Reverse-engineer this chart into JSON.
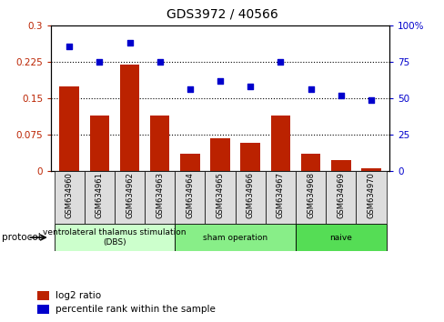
{
  "title": "GDS3972 / 40566",
  "samples": [
    "GSM634960",
    "GSM634961",
    "GSM634962",
    "GSM634963",
    "GSM634964",
    "GSM634965",
    "GSM634966",
    "GSM634967",
    "GSM634968",
    "GSM634969",
    "GSM634970"
  ],
  "log2_ratio": [
    0.175,
    0.115,
    0.22,
    0.115,
    0.035,
    0.068,
    0.058,
    0.115,
    0.035,
    0.022,
    0.005
  ],
  "percentile_rank": [
    86,
    75,
    88,
    75,
    56,
    62,
    58,
    75,
    56,
    52,
    49
  ],
  "bar_color": "#bb2200",
  "dot_color": "#0000cc",
  "ylim_left": [
    0,
    0.3
  ],
  "ylim_right": [
    0,
    100
  ],
  "yticks_left": [
    0,
    0.075,
    0.15,
    0.225,
    0.3
  ],
  "yticks_right": [
    0,
    25,
    50,
    75,
    100
  ],
  "ytick_labels_left": [
    "0",
    "0.075",
    "0.15",
    "0.225",
    "0.3"
  ],
  "ytick_labels_right": [
    "0",
    "25",
    "50",
    "75",
    "100%"
  ],
  "hlines": [
    0.075,
    0.15,
    0.225
  ],
  "protocol_groups": [
    {
      "label": "ventrolateral thalamus stimulation\n(DBS)",
      "start": 0,
      "end": 3,
      "color": "#ccffcc"
    },
    {
      "label": "sham operation",
      "start": 4,
      "end": 7,
      "color": "#88ee88"
    },
    {
      "label": "naive",
      "start": 8,
      "end": 10,
      "color": "#55dd55"
    }
  ],
  "legend_items": [
    {
      "label": "log2 ratio",
      "color": "#bb2200"
    },
    {
      "label": "percentile rank within the sample",
      "color": "#0000cc"
    }
  ],
  "background_color": "#ffffff",
  "protocol_label": "protocol",
  "bar_edge_color": "#888888",
  "xticklabel_bg": "#dddddd"
}
